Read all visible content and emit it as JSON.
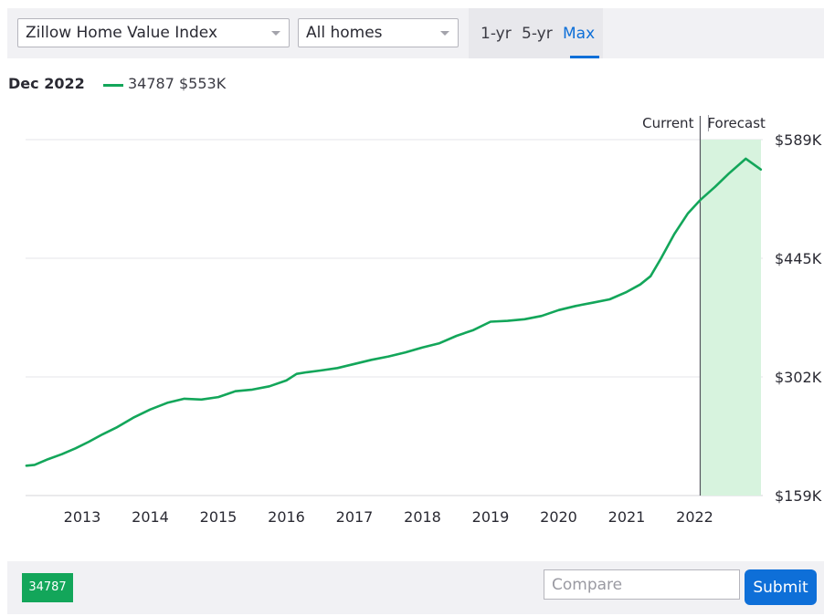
{
  "toolbar": {
    "metric_select": "Zillow Home Value Index",
    "home_type_select": "All homes",
    "ranges": [
      "1-yr",
      "5-yr",
      "Max"
    ],
    "active_range": "Max"
  },
  "legend": {
    "date": "Dec 2022",
    "series_label": "34787 $553K"
  },
  "chart_data": {
    "type": "line",
    "title": "",
    "xlabel": "",
    "ylabel": "",
    "x_ticks": [
      "2013",
      "2014",
      "2015",
      "2016",
      "2017",
      "2018",
      "2019",
      "2020",
      "2021",
      "2022"
    ],
    "y_ticks": [
      "$159K",
      "$302K",
      "$445K",
      "$589K"
    ],
    "ylim": [
      159,
      589
    ],
    "x_range": [
      2012.18,
      2022.97
    ],
    "grid": true,
    "annotations": {
      "current_label": "Current",
      "forecast_label": "Forecast",
      "divider_x": 2022.08
    },
    "series": [
      {
        "name": "34787",
        "color": "#13a65a",
        "points": [
          [
            2012.18,
            195
          ],
          [
            2012.3,
            196
          ],
          [
            2012.5,
            203
          ],
          [
            2012.7,
            209
          ],
          [
            2012.9,
            216
          ],
          [
            2013.1,
            224
          ],
          [
            2013.3,
            233
          ],
          [
            2013.5,
            241
          ],
          [
            2013.75,
            253
          ],
          [
            2014.0,
            263
          ],
          [
            2014.25,
            271
          ],
          [
            2014.5,
            276
          ],
          [
            2014.75,
            275
          ],
          [
            2015.0,
            278
          ],
          [
            2015.25,
            285
          ],
          [
            2015.5,
            287
          ],
          [
            2015.75,
            291
          ],
          [
            2016.0,
            298
          ],
          [
            2016.15,
            306
          ],
          [
            2016.3,
            308
          ],
          [
            2016.5,
            310
          ],
          [
            2016.75,
            313
          ],
          [
            2017.0,
            318
          ],
          [
            2017.25,
            323
          ],
          [
            2017.5,
            327
          ],
          [
            2017.75,
            332
          ],
          [
            2018.0,
            338
          ],
          [
            2018.25,
            343
          ],
          [
            2018.5,
            352
          ],
          [
            2018.75,
            359
          ],
          [
            2019.0,
            369
          ],
          [
            2019.25,
            370
          ],
          [
            2019.5,
            372
          ],
          [
            2019.75,
            376
          ],
          [
            2020.0,
            383
          ],
          [
            2020.25,
            388
          ],
          [
            2020.5,
            392
          ],
          [
            2020.75,
            396
          ],
          [
            2021.0,
            405
          ],
          [
            2021.2,
            414
          ],
          [
            2021.35,
            424
          ],
          [
            2021.5,
            445
          ],
          [
            2021.7,
            475
          ],
          [
            2021.9,
            500
          ],
          [
            2022.08,
            516
          ],
          [
            2022.3,
            532
          ],
          [
            2022.5,
            548
          ],
          [
            2022.75,
            566
          ],
          [
            2022.97,
            553
          ]
        ]
      }
    ]
  },
  "footer": {
    "chip_label": "34787",
    "compare_placeholder": "Compare",
    "submit_label": "Submit"
  }
}
